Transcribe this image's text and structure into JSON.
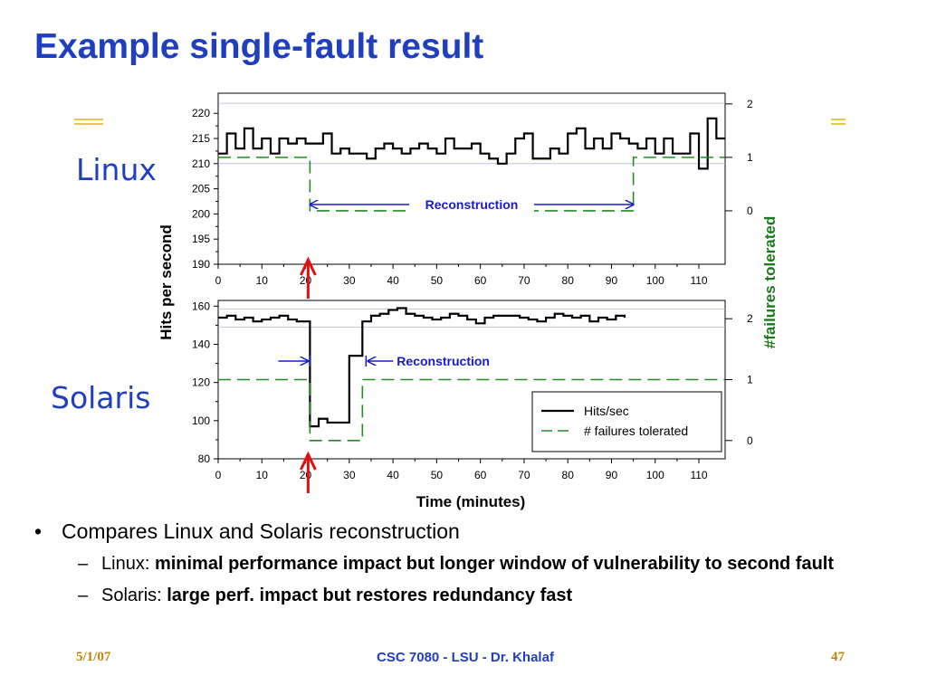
{
  "slide": {
    "title": "Example single-fault result",
    "linux_label": "Linux",
    "solaris_label": "Solaris"
  },
  "bullets": {
    "main": "Compares Linux and Solaris reconstruction",
    "sub1_prefix": "Linux: ",
    "sub1_bold": "minimal performance impact but longer window of vulnerability to second fault",
    "sub2_prefix": "Solaris: ",
    "sub2_bold": "large perf. impact but restores redundancy fast"
  },
  "footer": {
    "date": "5/1/07",
    "course": "CSC 7080 - LSU - Dr. Khalaf",
    "page": "47"
  },
  "colors": {
    "title": "#1f3fbf",
    "hits_line": "#000000",
    "failures_line": "#228b22",
    "annotation": "#1a1acc",
    "fault_arrow": "#e01010",
    "right_axis_label": "#1a7a1a",
    "footer": "#b8860b",
    "footer_course": "#1f3fbf"
  },
  "chart_data": [
    {
      "name": "Linux",
      "type": "line",
      "xlim": [
        0,
        116
      ],
      "x_ticks": [
        0,
        10,
        20,
        30,
        40,
        50,
        60,
        70,
        80,
        90,
        100,
        110
      ],
      "ylim": [
        190,
        224
      ],
      "y_ticks": [
        190,
        195,
        200,
        205,
        210,
        215,
        220
      ],
      "y2lim": [
        -1,
        2.2
      ],
      "y2_ticks": [
        0,
        1,
        2
      ],
      "ylabel": "Hits per second",
      "y2label": "#failures tolerated",
      "annotation": "Reconstruction",
      "fault_time": 21,
      "reconstruction_interval": [
        21,
        95
      ],
      "series": [
        {
          "name": "Hits/sec",
          "step": true,
          "x": [
            0,
            2,
            4,
            6,
            8,
            10,
            12,
            14,
            16,
            18,
            20,
            22,
            24,
            26,
            28,
            30,
            32,
            34,
            36,
            38,
            40,
            42,
            44,
            46,
            48,
            50,
            52,
            54,
            56,
            58,
            60,
            62,
            64,
            66,
            68,
            70,
            72,
            74,
            76,
            78,
            80,
            82,
            84,
            86,
            88,
            90,
            92,
            94,
            96,
            98,
            100,
            102,
            104,
            106,
            108,
            110,
            112,
            114,
            116
          ],
          "y": [
            212,
            216,
            213,
            217,
            213,
            215,
            212,
            215,
            214,
            215,
            214,
            214,
            216,
            212,
            213,
            212,
            212,
            211,
            213,
            214,
            213,
            212,
            213,
            214,
            213,
            212,
            215,
            213,
            213,
            214,
            212,
            211,
            210,
            212,
            215,
            216,
            211,
            211,
            213,
            212,
            216,
            217,
            213,
            215,
            213,
            216,
            215,
            214,
            213,
            215,
            212,
            215,
            212,
            212,
            216,
            209,
            219,
            215,
            215
          ]
        },
        {
          "name": "# failures tolerated",
          "step": true,
          "axis": "right",
          "x": [
            0,
            21,
            95,
            116
          ],
          "y": [
            1,
            0,
            1,
            1
          ]
        }
      ]
    },
    {
      "name": "Solaris",
      "type": "line",
      "xlim": [
        0,
        116
      ],
      "x_ticks": [
        0,
        10,
        20,
        30,
        40,
        50,
        60,
        70,
        80,
        90,
        100,
        110
      ],
      "ylim": [
        80,
        163
      ],
      "y_ticks": [
        80,
        100,
        120,
        140,
        160
      ],
      "y2lim": [
        -0.3,
        2.3
      ],
      "y2_ticks": [
        0,
        1,
        2
      ],
      "xlabel": "Time (minutes)",
      "annotation": "Reconstruction",
      "fault_time": 21,
      "reconstruction_interval": [
        21,
        33
      ],
      "legend": [
        "Hits/sec",
        "# failures tolerated"
      ],
      "legend_position": "bottom-right",
      "series": [
        {
          "name": "Hits/sec",
          "step": true,
          "x": [
            0,
            2,
            4,
            6,
            8,
            10,
            12,
            14,
            16,
            18,
            21,
            23,
            25,
            30,
            33,
            35,
            37,
            39,
            41,
            43,
            45,
            47,
            49,
            51,
            53,
            55,
            57,
            59,
            61,
            63,
            65,
            67,
            69,
            71,
            73,
            75,
            77,
            79,
            81,
            83,
            85,
            87,
            89,
            91,
            93
          ],
          "y": [
            154,
            155,
            153,
            154,
            152,
            153,
            154,
            155,
            153,
            152,
            97,
            101,
            99,
            134,
            152,
            155,
            156,
            158,
            159,
            156,
            155,
            154,
            153,
            154,
            156,
            155,
            153,
            151,
            154,
            155,
            155,
            155,
            154,
            153,
            152,
            154,
            156,
            155,
            154,
            155,
            152,
            154,
            153,
            155,
            154
          ]
        },
        {
          "name": "# failures tolerated",
          "step": true,
          "axis": "right",
          "x": [
            0,
            21,
            33,
            116
          ],
          "y": [
            1,
            0,
            1,
            1
          ]
        }
      ]
    }
  ]
}
